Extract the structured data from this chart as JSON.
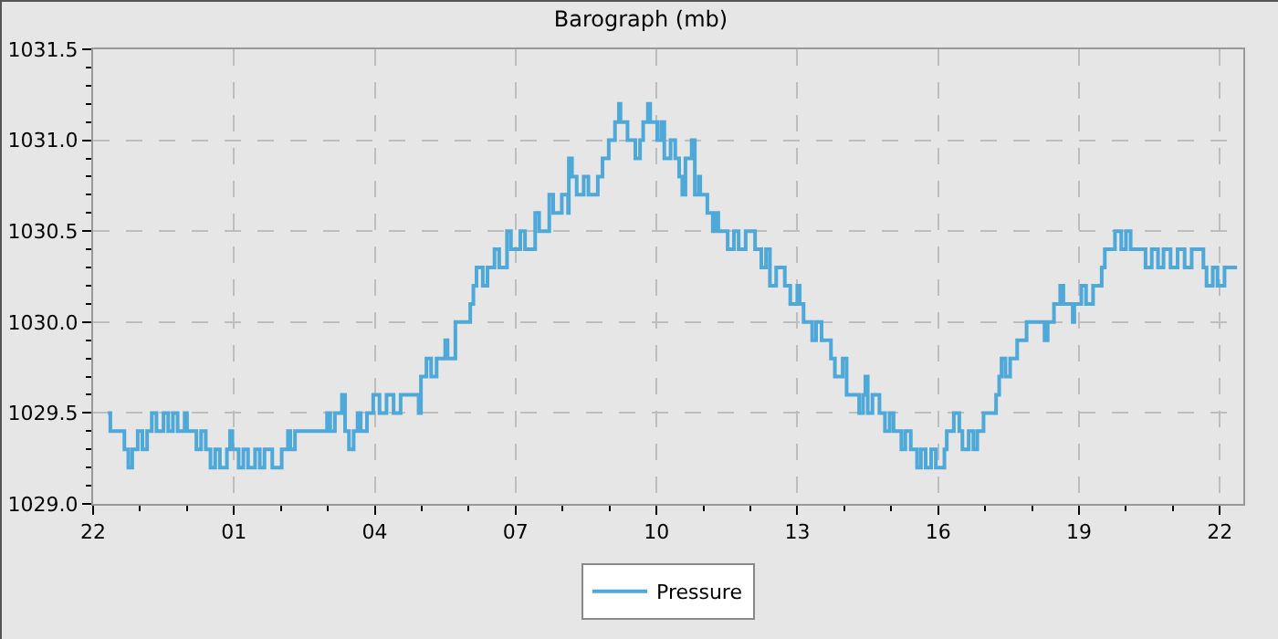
{
  "chart_data": {
    "type": "step",
    "title": "Barograph (mb)",
    "series": [
      {
        "name": "Pressure",
        "color": "#4ea9d9",
        "x": [
          "--01-01T22:19",
          "--01-01T22:22",
          "--01-01T22:40",
          "--01-01T22:45",
          "--01-01T22:50",
          "--01-01T22:57",
          "--01-01T23:03",
          "--01-01T23:09",
          "--01-01T23:15",
          "--01-01T23:21",
          "--01-01T23:30",
          "--01-01T23:36",
          "--01-01T23:42",
          "--01-01T23:48",
          "--01-01T23:57",
          "--01-02T00:00",
          "--01-02T00:12",
          "--01-02T00:18",
          "--01-02T00:24",
          "--01-02T00:30",
          "--01-02T00:36",
          "--01-02T00:42",
          "--01-02T00:51",
          "--01-02T00:55",
          "--01-02T00:58",
          "--01-02T01:06",
          "--01-02T01:12",
          "--01-02T01:18",
          "--01-02T01:27",
          "--01-02T01:33",
          "--01-02T01:39",
          "--01-02T01:49",
          "--01-02T02:01",
          "--01-02T02:09",
          "--01-02T02:12",
          "--01-02T02:18",
          "--01-02T02:59",
          "--01-02T03:03",
          "--01-02T03:09",
          "--01-02T03:18",
          "--01-02T03:22",
          "--01-02T03:27",
          "--01-02T03:33",
          "--01-02T03:38",
          "--01-02T03:42",
          "--01-02T03:50",
          "--01-02T03:58",
          "--01-02T04:06",
          "--01-02T04:15",
          "--01-02T04:24",
          "--01-02T04:33",
          "--01-02T04:56",
          "--01-02T04:59",
          "--01-02T05:06",
          "--01-02T05:12",
          "--01-02T05:19",
          "--01-02T05:30",
          "--01-02T05:33",
          "--01-02T05:43",
          "--01-02T06:02",
          "--01-02T06:06",
          "--01-02T06:10",
          "--01-02T06:18",
          "--01-02T06:24",
          "--01-02T06:33",
          "--01-02T06:39",
          "--01-02T06:49",
          "--01-02T06:54",
          "--01-02T07:06",
          "--01-02T07:12",
          "--01-02T07:25",
          "--01-02T07:30",
          "--01-02T07:43",
          "--01-02T07:48",
          "--01-02T07:59",
          "--01-02T08:07",
          "--01-02T08:08",
          "--01-02T08:12",
          "--01-02T08:18",
          "--01-02T08:27",
          "--01-02T08:33",
          "--01-02T08:45",
          "--01-02T08:51",
          "--01-02T08:59",
          "--01-02T09:07",
          "--01-02T09:12",
          "--01-02T09:14",
          "--01-02T09:23",
          "--01-02T09:33",
          "--01-02T09:39",
          "--01-02T09:43",
          "--01-02T09:49",
          "--01-02T09:52",
          "--01-02T10:01",
          "--01-02T10:06",
          "--01-02T10:10",
          "--01-02T10:18",
          "--01-02T10:24",
          "--01-02T10:29",
          "--01-02T10:33",
          "--01-02T10:37",
          "--01-02T10:45",
          "--01-02T10:49",
          "--01-02T10:54",
          "--01-02T10:56",
          "--01-02T11:05",
          "--01-02T11:12",
          "--01-02T11:16",
          "--01-02T11:19",
          "--01-02T11:31",
          "--01-02T11:39",
          "--01-02T11:45",
          "--01-02T11:54",
          "--01-02T12:06",
          "--01-02T12:14",
          "--01-02T12:20",
          "--01-02T12:25",
          "--01-02T12:33",
          "--01-02T12:44",
          "--01-02T12:51",
          "--01-02T13:00",
          "--01-02T13:03",
          "--01-02T13:08",
          "--01-02T13:19",
          "--01-02T13:24",
          "--01-02T13:31",
          "--01-02T13:43",
          "--01-02T13:48",
          "--01-02T13:58",
          "--01-02T14:03",
          "--01-02T14:19",
          "--01-02T14:24",
          "--01-02T14:27",
          "--01-02T14:30",
          "--01-02T14:36",
          "--01-02T14:45",
          "--01-02T14:52",
          "--01-02T14:58",
          "--01-02T15:03",
          "--01-02T15:13",
          "--01-02T15:18",
          "--01-02T15:25",
          "--01-02T15:33",
          "--01-02T15:38",
          "--01-02T15:44",
          "--01-02T15:51",
          "--01-02T15:57",
          "--01-02T16:08",
          "--01-02T16:11",
          "--01-02T16:20",
          "--01-02T16:27",
          "--01-02T16:31",
          "--01-02T16:39",
          "--01-02T16:45",
          "--01-02T16:50",
          "--01-02T16:58",
          "--01-02T17:14",
          "--01-02T17:18",
          "--01-02T17:21",
          "--01-02T17:26",
          "--01-02T17:32",
          "--01-02T17:41",
          "--01-02T17:53",
          "--01-02T18:16",
          "--01-02T18:20",
          "--01-02T18:28",
          "--01-02T18:36",
          "--01-02T18:40",
          "--01-02T18:52",
          "--01-02T18:54",
          "--01-02T19:03",
          "--01-02T19:09",
          "--01-02T19:18",
          "--01-02T19:29",
          "--01-02T19:33",
          "--01-02T19:46",
          "--01-02T19:54",
          "--01-02T20:00",
          "--01-02T20:06",
          "--01-02T20:25",
          "--01-02T20:33",
          "--01-02T20:41",
          "--01-02T20:48",
          "--01-02T20:57",
          "--01-02T21:06",
          "--01-02T21:15",
          "--01-02T21:24",
          "--01-02T21:39",
          "--01-02T21:43",
          "--01-02T21:51",
          "--01-02T21:57",
          "--01-02T22:06",
          "--01-02T22:22"
        ],
        "values": [
          1029.5,
          1029.4,
          1029.3,
          1029.2,
          1029.3,
          1029.4,
          1029.3,
          1029.4,
          1029.5,
          1029.4,
          1029.5,
          1029.4,
          1029.5,
          1029.4,
          1029.5,
          1029.4,
          1029.3,
          1029.4,
          1029.3,
          1029.2,
          1029.3,
          1029.2,
          1029.3,
          1029.4,
          1029.3,
          1029.2,
          1029.3,
          1029.2,
          1029.3,
          1029.2,
          1029.3,
          1029.2,
          1029.3,
          1029.4,
          1029.3,
          1029.4,
          1029.5,
          1029.4,
          1029.5,
          1029.6,
          1029.4,
          1029.3,
          1029.4,
          1029.5,
          1029.4,
          1029.5,
          1029.6,
          1029.5,
          1029.6,
          1029.5,
          1029.6,
          1029.5,
          1029.7,
          1029.8,
          1029.7,
          1029.8,
          1029.9,
          1029.8,
          1030.0,
          1030.1,
          1030.2,
          1030.3,
          1030.2,
          1030.3,
          1030.4,
          1030.3,
          1030.5,
          1030.4,
          1030.5,
          1030.4,
          1030.6,
          1030.5,
          1030.7,
          1030.6,
          1030.7,
          1030.6,
          1030.9,
          1030.8,
          1030.7,
          1030.8,
          1030.7,
          1030.8,
          1030.9,
          1031.0,
          1031.1,
          1031.2,
          1031.1,
          1031.0,
          1030.9,
          1031.0,
          1031.1,
          1031.2,
          1031.1,
          1031.0,
          1031.1,
          1030.9,
          1031.0,
          1030.9,
          1030.8,
          1030.7,
          1030.9,
          1031.0,
          1030.7,
          1030.8,
          1030.7,
          1030.6,
          1030.5,
          1030.6,
          1030.5,
          1030.4,
          1030.5,
          1030.4,
          1030.5,
          1030.4,
          1030.3,
          1030.4,
          1030.2,
          1030.3,
          1030.2,
          1030.1,
          1030.2,
          1030.1,
          1030.0,
          1029.9,
          1030.0,
          1029.9,
          1029.8,
          1029.7,
          1029.8,
          1029.6,
          1029.5,
          1029.6,
          1029.7,
          1029.5,
          1029.6,
          1029.5,
          1029.4,
          1029.5,
          1029.4,
          1029.3,
          1029.4,
          1029.3,
          1029.2,
          1029.3,
          1029.2,
          1029.3,
          1029.2,
          1029.3,
          1029.4,
          1029.5,
          1029.4,
          1029.3,
          1029.4,
          1029.3,
          1029.4,
          1029.5,
          1029.6,
          1029.7,
          1029.8,
          1029.7,
          1029.8,
          1029.9,
          1030.0,
          1029.9,
          1030.0,
          1030.1,
          1030.2,
          1030.1,
          1030.0,
          1030.1,
          1030.2,
          1030.1,
          1030.2,
          1030.3,
          1030.4,
          1030.5,
          1030.4,
          1030.5,
          1030.4,
          1030.3,
          1030.4,
          1030.3,
          1030.4,
          1030.3,
          1030.4,
          1030.3,
          1030.4,
          1030.3,
          1030.2,
          1030.3,
          1030.2,
          1030.3,
          1030.3
        ]
      }
    ],
    "xlim": [
      "--01-01T22:00",
      "--01-02T22:30"
    ],
    "xticks": [
      {
        "value": "--01-01T22:00",
        "label": "22"
      },
      {
        "value": "--01-02T01:00",
        "label": "01"
      },
      {
        "value": "--01-02T04:00",
        "label": "04"
      },
      {
        "value": "--01-02T07:00",
        "label": "07"
      },
      {
        "value": "--01-02T10:00",
        "label": "10"
      },
      {
        "value": "--01-02T13:00",
        "label": "13"
      },
      {
        "value": "--01-02T16:00",
        "label": "16"
      },
      {
        "value": "--01-02T19:00",
        "label": "19"
      },
      {
        "value": "--01-02T22:00",
        "label": "22"
      }
    ],
    "ylim": [
      1029.0,
      1031.5
    ],
    "yticks": [
      {
        "value": 1029.0,
        "label": "1029.0"
      },
      {
        "value": 1029.5,
        "label": "1029.5"
      },
      {
        "value": 1030.0,
        "label": "1030.0"
      },
      {
        "value": 1030.5,
        "label": "1030.5"
      },
      {
        "value": 1031.0,
        "label": "1031.0"
      },
      {
        "value": 1031.5,
        "label": "1031.5"
      }
    ],
    "grid": true,
    "legend": "bottom",
    "line_style": "solid"
  }
}
